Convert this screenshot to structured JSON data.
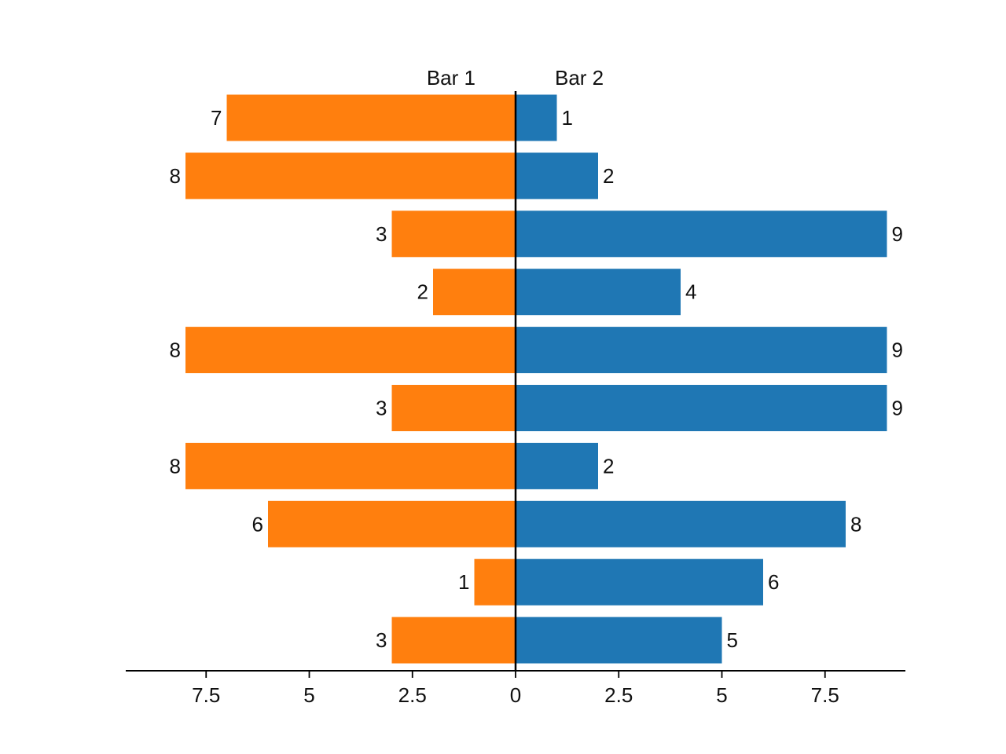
{
  "chart_data": {
    "type": "bar",
    "orientation": "horizontal",
    "layout": "diverging",
    "title": "",
    "xlabel": "",
    "ylabel": "",
    "xlim": [
      -9.5,
      9.5
    ],
    "grid": false,
    "legend": "none",
    "series": [
      {
        "name": "Bar 1",
        "side": "left",
        "color": "#ff7f0e",
        "values": [
          7,
          8,
          3,
          2,
          8,
          3,
          8,
          6,
          1,
          3
        ]
      },
      {
        "name": "Bar 2",
        "side": "right",
        "color": "#1f77b4",
        "values": [
          1,
          2,
          9,
          4,
          9,
          9,
          2,
          8,
          6,
          5
        ]
      }
    ],
    "x_ticks": [
      {
        "value": -7.5,
        "label": "7.5"
      },
      {
        "value": -5,
        "label": "5"
      },
      {
        "value": -2.5,
        "label": "2.5"
      },
      {
        "value": 0,
        "label": "0"
      },
      {
        "value": 2.5,
        "label": "2.5"
      },
      {
        "value": 5,
        "label": "5"
      },
      {
        "value": 7.5,
        "label": "7.5"
      }
    ]
  }
}
